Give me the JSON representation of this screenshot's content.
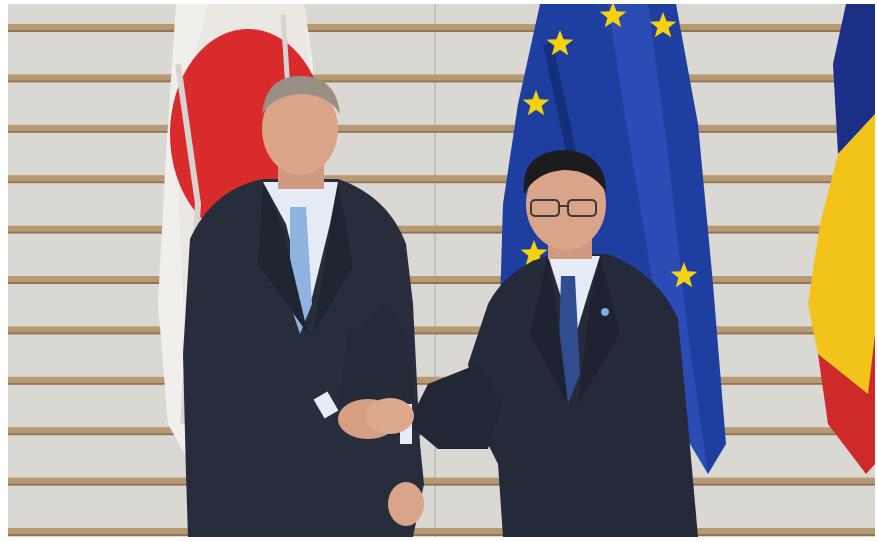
{
  "photo": {
    "subject": "",
    "colors": {
      "wall": "#d9d8d2",
      "wall_shadow": "#c9c8c2",
      "slat": "#b89a72",
      "slat_dark": "#8f7555",
      "japan_white": "#f1efec",
      "japan_red": "#d92b2b",
      "eu_blue": "#1f3fa0",
      "eu_star": "#f5d20f",
      "ro_blue": "#1c2f86",
      "ro_yellow": "#f2c318",
      "ro_red": "#cf2a2a",
      "suit": "#272d3b",
      "shirt": "#e6ecf5",
      "tie_left": "#8db3de",
      "tie_right": "#2f4d8f",
      "skin": "#d9a488",
      "hair_grey": "#9a8f84",
      "hair_black": "#1c1c1c"
    },
    "flags": [
      "japan-flag",
      "eu-flag",
      "romania-flag"
    ]
  }
}
